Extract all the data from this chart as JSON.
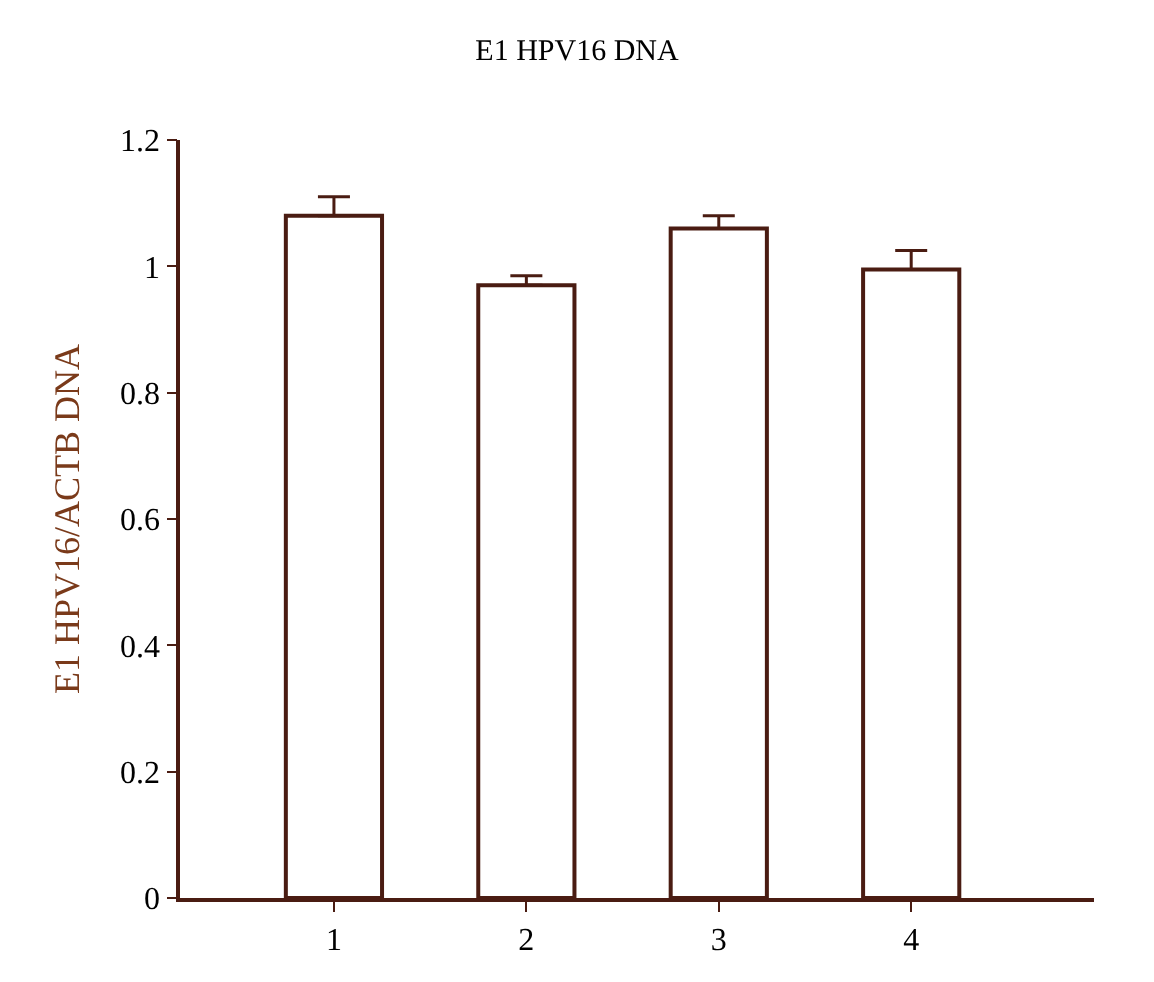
{
  "chart_data": {
    "type": "bar",
    "title": "E1 HPV16 DNA",
    "ylabel": "E1 HPV16/ACTB DNA",
    "categories": [
      "1",
      "2",
      "3",
      "4"
    ],
    "values": [
      1.08,
      0.97,
      1.06,
      0.995
    ],
    "errors": [
      [
        1.08,
        1.11
      ],
      [
        0.97,
        0.985
      ],
      [
        1.06,
        1.08
      ],
      [
        0.995,
        1.025
      ]
    ],
    "color": "#4a1c12",
    "ylim": [
      0,
      1.2
    ],
    "yticks": [
      0,
      0.2,
      0.4,
      0.6,
      0.8,
      1,
      1.2
    ],
    "legend": false
  }
}
